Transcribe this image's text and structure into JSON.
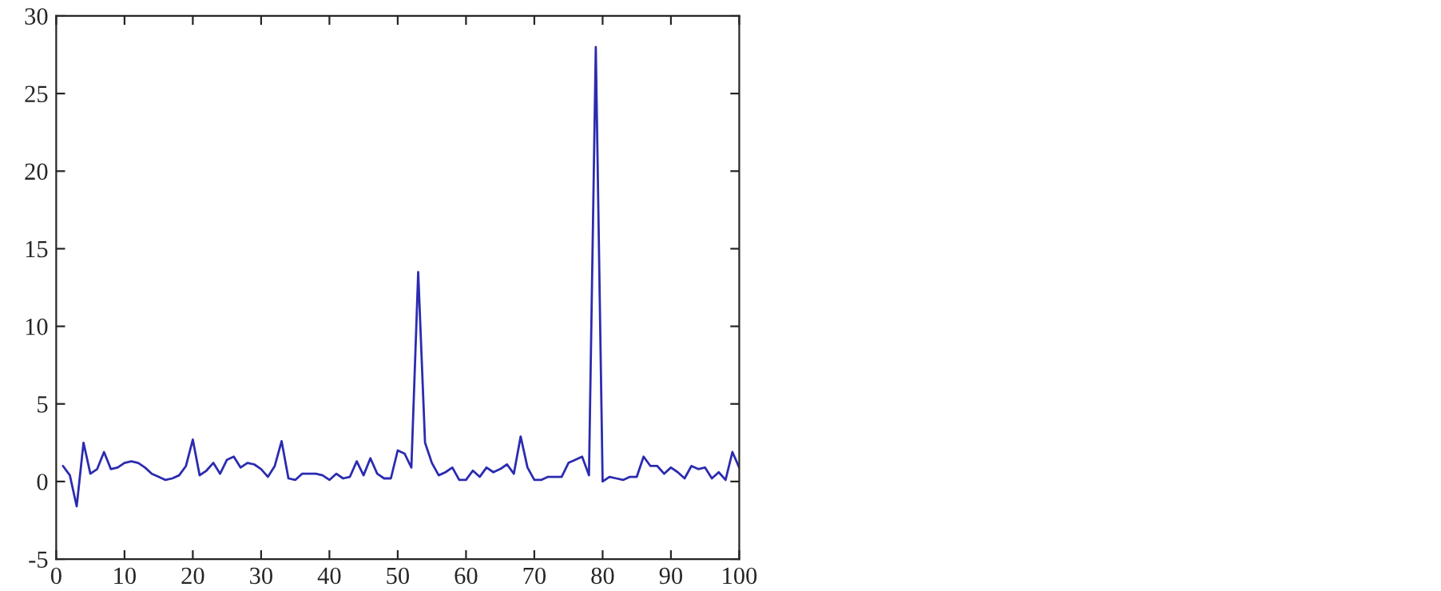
{
  "chart_data": {
    "type": "line",
    "x": [
      1,
      2,
      3,
      4,
      5,
      6,
      7,
      8,
      9,
      10,
      11,
      12,
      13,
      14,
      15,
      16,
      17,
      18,
      19,
      20,
      21,
      22,
      23,
      24,
      25,
      26,
      27,
      28,
      29,
      30,
      31,
      32,
      33,
      34,
      35,
      36,
      37,
      38,
      39,
      40,
      41,
      42,
      43,
      44,
      45,
      46,
      47,
      48,
      49,
      50,
      51,
      52,
      53,
      54,
      55,
      56,
      57,
      58,
      59,
      60,
      61,
      62,
      63,
      64,
      65,
      66,
      67,
      68,
      69,
      70,
      71,
      72,
      73,
      74,
      75,
      76,
      77,
      78,
      79,
      80,
      81,
      82,
      83,
      84,
      85,
      86,
      87,
      88,
      89,
      90,
      91,
      92,
      93,
      94,
      95,
      96,
      97,
      98,
      99,
      100
    ],
    "series": [
      {
        "color": "#2b2bb0",
        "values": [
          1.0,
          0.4,
          -1.6,
          2.5,
          0.5,
          0.8,
          1.9,
          0.8,
          0.9,
          1.2,
          1.3,
          1.2,
          0.9,
          0.5,
          0.3,
          0.1,
          0.2,
          0.4,
          1.0,
          2.7,
          0.4,
          0.7,
          1.2,
          0.5,
          1.4,
          1.6,
          0.9,
          1.2,
          1.1,
          0.8,
          0.3,
          1.0,
          2.6,
          0.2,
          0.1,
          0.5,
          0.5,
          0.5,
          0.4,
          0.1,
          0.5,
          0.2,
          0.3,
          1.3,
          0.4,
          1.5,
          0.5,
          0.2,
          0.2,
          2.0,
          1.8,
          0.9,
          13.5,
          2.5,
          1.2,
          0.4,
          0.6,
          0.9,
          0.1,
          0.1,
          0.7,
          0.3,
          0.9,
          0.6,
          0.8,
          1.1,
          0.5,
          2.9,
          0.9,
          0.1,
          0.1,
          0.3,
          0.3,
          0.3,
          1.2,
          1.4,
          1.6,
          0.4,
          28.0,
          0.0,
          0.3,
          0.2,
          0.1,
          0.3,
          0.3,
          1.6,
          1.0,
          1.0,
          0.5,
          0.9,
          0.6,
          0.2,
          1.0,
          0.8,
          0.9,
          0.2,
          0.6,
          0.1,
          1.9,
          0.9
        ]
      }
    ],
    "xlim": [
      0,
      100
    ],
    "xticks": [
      0,
      10,
      20,
      30,
      40,
      50,
      60,
      70,
      80,
      90,
      100
    ],
    "ylim": [
      -5,
      30
    ],
    "yticks": [
      -5,
      0,
      5,
      10,
      15,
      20,
      25,
      30
    ],
    "grid": false,
    "marker": "none",
    "line_style": "solid"
  }
}
